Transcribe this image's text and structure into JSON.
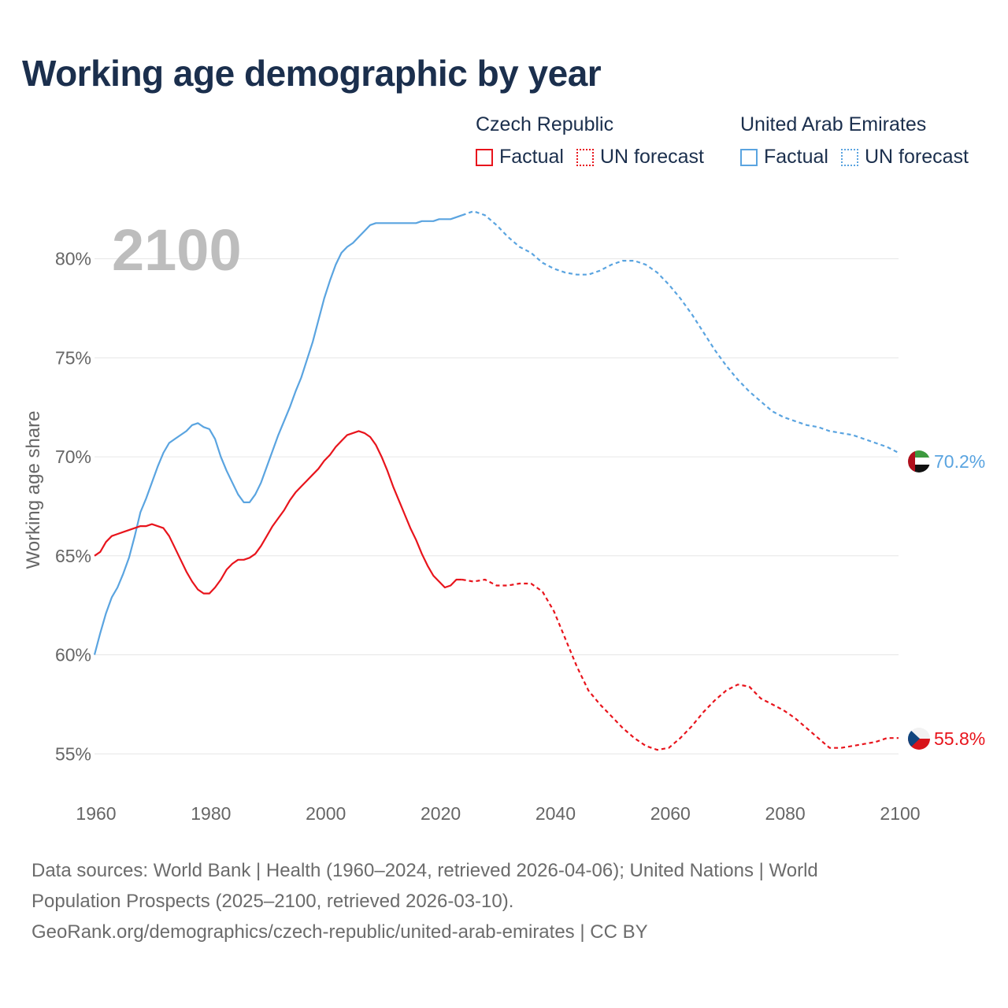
{
  "title": "Working age demographic by year",
  "legend": {
    "groups": [
      {
        "country": "Czech Republic",
        "factual": "Factual",
        "forecast": "UN forecast",
        "color": "#e8141c"
      },
      {
        "country": "United Arab Emirates",
        "factual": "Factual",
        "forecast": "UN forecast",
        "color": "#5aa4e0"
      }
    ]
  },
  "year_label": "2100",
  "footer": {
    "line1": "Data sources: World Bank | Health (1960–2024, retrieved 2026-04-06); United Nations | World",
    "line2": "Population Prospects (2025–2100, retrieved 2026-03-10).",
    "line3": "GeoRank.org/demographics/czech-republic/united-arab-emirates | CC BY"
  },
  "chart_data": {
    "type": "line",
    "title": "Working age demographic by year",
    "xlabel": "",
    "ylabel": "Working age share",
    "xlim": [
      1960,
      2100
    ],
    "ylim": [
      53.5,
      84
    ],
    "xticks": [
      1960,
      1980,
      2000,
      2020,
      2040,
      2060,
      2080,
      2100
    ],
    "xtick_labels": [
      "1960",
      "1980",
      "2000",
      "2020",
      "2040",
      "2060",
      "2080",
      "2100"
    ],
    "yticks": [
      55,
      60,
      65,
      70,
      75,
      80
    ],
    "ytick_labels": [
      "55%",
      "60%",
      "65%",
      "70%",
      "75%",
      "80%"
    ],
    "factual_end_year": 2024,
    "series": [
      {
        "name": "United Arab Emirates",
        "color": "#5aa4e0",
        "end_label": "70.2%",
        "points": [
          [
            1960,
            60.0
          ],
          [
            1961,
            61.1
          ],
          [
            1962,
            62.1
          ],
          [
            1963,
            62.9
          ],
          [
            1964,
            63.4
          ],
          [
            1965,
            64.1
          ],
          [
            1966,
            64.9
          ],
          [
            1967,
            66.0
          ],
          [
            1968,
            67.2
          ],
          [
            1969,
            67.9
          ],
          [
            1970,
            68.7
          ],
          [
            1971,
            69.5
          ],
          [
            1972,
            70.2
          ],
          [
            1973,
            70.7
          ],
          [
            1974,
            70.9
          ],
          [
            1975,
            71.1
          ],
          [
            1976,
            71.3
          ],
          [
            1977,
            71.6
          ],
          [
            1978,
            71.7
          ],
          [
            1979,
            71.5
          ],
          [
            1980,
            71.4
          ],
          [
            1981,
            70.9
          ],
          [
            1982,
            70.0
          ],
          [
            1983,
            69.3
          ],
          [
            1984,
            68.7
          ],
          [
            1985,
            68.1
          ],
          [
            1986,
            67.7
          ],
          [
            1987,
            67.7
          ],
          [
            1988,
            68.1
          ],
          [
            1989,
            68.7
          ],
          [
            1990,
            69.5
          ],
          [
            1991,
            70.3
          ],
          [
            1992,
            71.1
          ],
          [
            1993,
            71.8
          ],
          [
            1994,
            72.5
          ],
          [
            1995,
            73.3
          ],
          [
            1996,
            74.0
          ],
          [
            1997,
            74.9
          ],
          [
            1998,
            75.8
          ],
          [
            1999,
            76.9
          ],
          [
            2000,
            78.0
          ],
          [
            2001,
            78.9
          ],
          [
            2002,
            79.7
          ],
          [
            2003,
            80.3
          ],
          [
            2004,
            80.6
          ],
          [
            2005,
            80.8
          ],
          [
            2006,
            81.1
          ],
          [
            2007,
            81.4
          ],
          [
            2008,
            81.7
          ],
          [
            2009,
            81.8
          ],
          [
            2010,
            81.8
          ],
          [
            2012,
            81.8
          ],
          [
            2014,
            81.8
          ],
          [
            2016,
            81.8
          ],
          [
            2017,
            81.9
          ],
          [
            2019,
            81.9
          ],
          [
            2020,
            82.0
          ],
          [
            2022,
            82.0
          ],
          [
            2024,
            82.2
          ],
          [
            2026,
            82.4
          ],
          [
            2028,
            82.2
          ],
          [
            2030,
            81.7
          ],
          [
            2032,
            81.1
          ],
          [
            2034,
            80.6
          ],
          [
            2036,
            80.3
          ],
          [
            2038,
            79.8
          ],
          [
            2040,
            79.5
          ],
          [
            2042,
            79.3
          ],
          [
            2044,
            79.2
          ],
          [
            2046,
            79.2
          ],
          [
            2048,
            79.4
          ],
          [
            2050,
            79.7
          ],
          [
            2052,
            79.9
          ],
          [
            2054,
            79.9
          ],
          [
            2056,
            79.7
          ],
          [
            2058,
            79.3
          ],
          [
            2060,
            78.7
          ],
          [
            2062,
            78.0
          ],
          [
            2064,
            77.2
          ],
          [
            2066,
            76.3
          ],
          [
            2068,
            75.4
          ],
          [
            2070,
            74.6
          ],
          [
            2072,
            73.9
          ],
          [
            2074,
            73.3
          ],
          [
            2076,
            72.8
          ],
          [
            2078,
            72.3
          ],
          [
            2080,
            72.0
          ],
          [
            2082,
            71.8
          ],
          [
            2084,
            71.6
          ],
          [
            2086,
            71.5
          ],
          [
            2088,
            71.3
          ],
          [
            2090,
            71.2
          ],
          [
            2092,
            71.1
          ],
          [
            2094,
            70.9
          ],
          [
            2096,
            70.7
          ],
          [
            2098,
            70.5
          ],
          [
            2100,
            70.2
          ]
        ]
      },
      {
        "name": "Czech Republic",
        "color": "#e8141c",
        "end_label": "55.8%",
        "points": [
          [
            1960,
            65.0
          ],
          [
            1961,
            65.2
          ],
          [
            1962,
            65.7
          ],
          [
            1963,
            66.0
          ],
          [
            1964,
            66.1
          ],
          [
            1965,
            66.2
          ],
          [
            1966,
            66.3
          ],
          [
            1967,
            66.4
          ],
          [
            1968,
            66.5
          ],
          [
            1969,
            66.5
          ],
          [
            1970,
            66.6
          ],
          [
            1971,
            66.5
          ],
          [
            1972,
            66.4
          ],
          [
            1973,
            66.0
          ],
          [
            1974,
            65.4
          ],
          [
            1975,
            64.8
          ],
          [
            1976,
            64.2
          ],
          [
            1977,
            63.7
          ],
          [
            1978,
            63.3
          ],
          [
            1979,
            63.1
          ],
          [
            1980,
            63.1
          ],
          [
            1981,
            63.4
          ],
          [
            1982,
            63.8
          ],
          [
            1983,
            64.3
          ],
          [
            1984,
            64.6
          ],
          [
            1985,
            64.8
          ],
          [
            1986,
            64.8
          ],
          [
            1987,
            64.9
          ],
          [
            1988,
            65.1
          ],
          [
            1989,
            65.5
          ],
          [
            1990,
            66.0
          ],
          [
            1991,
            66.5
          ],
          [
            1992,
            66.9
          ],
          [
            1993,
            67.3
          ],
          [
            1994,
            67.8
          ],
          [
            1995,
            68.2
          ],
          [
            1996,
            68.5
          ],
          [
            1997,
            68.8
          ],
          [
            1998,
            69.1
          ],
          [
            1999,
            69.4
          ],
          [
            2000,
            69.8
          ],
          [
            2001,
            70.1
          ],
          [
            2002,
            70.5
          ],
          [
            2003,
            70.8
          ],
          [
            2004,
            71.1
          ],
          [
            2005,
            71.2
          ],
          [
            2006,
            71.3
          ],
          [
            2007,
            71.2
          ],
          [
            2008,
            71.0
          ],
          [
            2009,
            70.6
          ],
          [
            2010,
            70.0
          ],
          [
            2011,
            69.3
          ],
          [
            2012,
            68.5
          ],
          [
            2013,
            67.8
          ],
          [
            2014,
            67.1
          ],
          [
            2015,
            66.4
          ],
          [
            2016,
            65.8
          ],
          [
            2017,
            65.1
          ],
          [
            2018,
            64.5
          ],
          [
            2019,
            64.0
          ],
          [
            2020,
            63.7
          ],
          [
            2021,
            63.4
          ],
          [
            2022,
            63.5
          ],
          [
            2023,
            63.8
          ],
          [
            2024,
            63.8
          ],
          [
            2026,
            63.7
          ],
          [
            2028,
            63.8
          ],
          [
            2030,
            63.5
          ],
          [
            2032,
            63.5
          ],
          [
            2034,
            63.6
          ],
          [
            2036,
            63.6
          ],
          [
            2038,
            63.2
          ],
          [
            2040,
            62.2
          ],
          [
            2042,
            60.8
          ],
          [
            2044,
            59.4
          ],
          [
            2046,
            58.2
          ],
          [
            2048,
            57.5
          ],
          [
            2050,
            56.9
          ],
          [
            2052,
            56.3
          ],
          [
            2054,
            55.8
          ],
          [
            2056,
            55.4
          ],
          [
            2058,
            55.2
          ],
          [
            2060,
            55.3
          ],
          [
            2062,
            55.8
          ],
          [
            2064,
            56.4
          ],
          [
            2066,
            57.1
          ],
          [
            2068,
            57.7
          ],
          [
            2070,
            58.2
          ],
          [
            2072,
            58.5
          ],
          [
            2074,
            58.4
          ],
          [
            2076,
            57.8
          ],
          [
            2078,
            57.5
          ],
          [
            2080,
            57.2
          ],
          [
            2082,
            56.8
          ],
          [
            2084,
            56.3
          ],
          [
            2086,
            55.8
          ],
          [
            2088,
            55.3
          ],
          [
            2090,
            55.3
          ],
          [
            2092,
            55.4
          ],
          [
            2094,
            55.5
          ],
          [
            2096,
            55.6
          ],
          [
            2098,
            55.8
          ],
          [
            2100,
            55.8
          ]
        ]
      }
    ]
  }
}
